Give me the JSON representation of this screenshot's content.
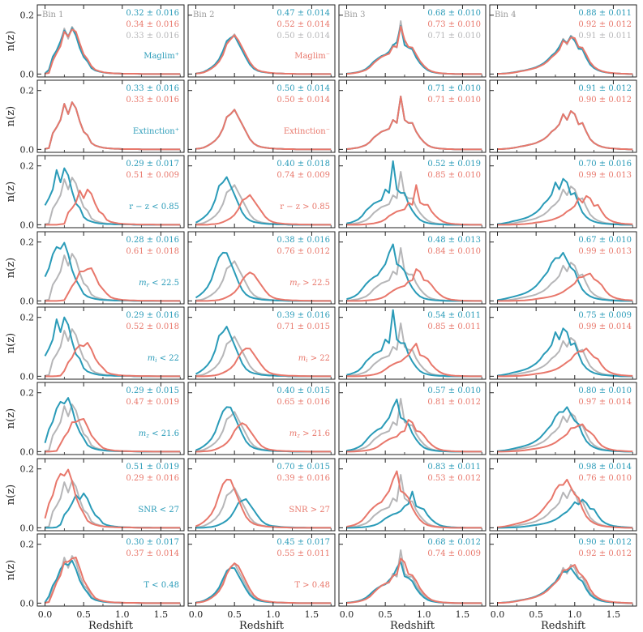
{
  "chart_data": {
    "type": "line",
    "title": "",
    "xlabel": "Redshift",
    "ylabel": "n(z)",
    "xlim": [
      -0.1,
      1.8
    ],
    "ylim": [
      -0.01,
      0.235
    ],
    "x_ticks": [
      0.0,
      0.5,
      1.0,
      1.5
    ],
    "x_tick_labels": [
      "0.0",
      "0.5",
      "1.0",
      "1.5"
    ],
    "y_ticks": [
      0.0,
      0.2
    ],
    "y_tick_labels": [
      "0.0",
      "0.2"
    ],
    "x_grid": [
      0.0,
      0.05,
      0.1,
      0.15,
      0.2,
      0.25,
      0.3,
      0.35,
      0.4,
      0.45,
      0.5,
      0.55,
      0.6,
      0.65,
      0.7,
      0.75,
      0.8,
      0.85,
      0.9,
      0.95,
      1.0,
      1.05,
      1.1,
      1.15,
      1.2,
      1.25,
      1.3,
      1.35,
      1.4,
      1.45,
      1.5,
      1.55,
      1.6,
      1.65,
      1.7,
      1.75
    ],
    "colors": {
      "blue": "#2a9bb8",
      "red": "#e8776b",
      "gray": "#b6b6b8"
    },
    "bin_labels": [
      "Bin 1",
      "Bin 2",
      "Bin 3",
      "Bin 4"
    ],
    "rows": [
      {
        "name": "Maglim",
        "labels": {
          "blue": "Maglim⁺",
          "red": "Maglim⁻"
        },
        "means": [
          [
            "0.32 ± 0.016",
            "0.34 ± 0.016",
            "0.33 ± 0.016"
          ],
          [
            "0.47 ± 0.014",
            "0.52 ± 0.014",
            "0.50 ± 0.014"
          ],
          [
            "0.68 ± 0.010",
            "0.73 ± 0.010",
            "0.71 ± 0.010"
          ],
          [
            "0.88 ± 0.011",
            "0.92 ± 0.012",
            "0.91 ± 0.011"
          ]
        ]
      },
      {
        "name": "Extinction",
        "labels": {
          "blue": "Extinction⁺",
          "red": "Extinction⁻"
        },
        "means": [
          [
            "0.33 ± 0.016",
            "0.33 ± 0.016"
          ],
          [
            "0.50 ± 0.014",
            "0.50 ± 0.014"
          ],
          [
            "0.71 ± 0.010",
            "0.71 ± 0.010"
          ],
          [
            "0.91 ± 0.012",
            "0.90 ± 0.012"
          ]
        ]
      },
      {
        "name": "r-z",
        "labels": {
          "blue": "r − z < 0.85",
          "red": "r − z > 0.85"
        },
        "means": [
          [
            "0.29 ± 0.017",
            "0.51 ± 0.009"
          ],
          [
            "0.40 ± 0.018",
            "0.74 ± 0.009"
          ],
          [
            "0.52 ± 0.019",
            "0.85 ± 0.010"
          ],
          [
            "0.70 ± 0.016",
            "0.99 ± 0.013"
          ]
        ]
      },
      {
        "name": "m_r",
        "labels": {
          "blue": "m_r < 22.5",
          "red": "m_r > 22.5"
        },
        "means": [
          [
            "0.28 ± 0.016",
            "0.61 ± 0.018"
          ],
          [
            "0.38 ± 0.016",
            "0.76 ± 0.012"
          ],
          [
            "0.48 ± 0.013",
            "0.84 ± 0.010"
          ],
          [
            "0.67 ± 0.010",
            "0.99 ± 0.013"
          ]
        ]
      },
      {
        "name": "m_i",
        "labels": {
          "blue": "m_i < 22",
          "red": "m_i > 22"
        },
        "means": [
          [
            "0.29 ± 0.016",
            "0.52 ± 0.018"
          ],
          [
            "0.39 ± 0.016",
            "0.71 ± 0.015"
          ],
          [
            "0.54 ± 0.011",
            "0.85 ± 0.011"
          ],
          [
            "0.75 ± 0.009",
            "0.99 ± 0.014"
          ]
        ]
      },
      {
        "name": "m_z",
        "labels": {
          "blue": "m_z < 21.6",
          "red": "m_z > 21.6"
        },
        "means": [
          [
            "0.29 ± 0.015",
            "0.47 ± 0.019"
          ],
          [
            "0.40 ± 0.015",
            "0.65 ± 0.016"
          ],
          [
            "0.57 ± 0.010",
            "0.81 ± 0.012"
          ],
          [
            "0.80 ± 0.010",
            "0.97 ± 0.014"
          ]
        ]
      },
      {
        "name": "SNR",
        "labels": {
          "blue": "SNR < 27",
          "red": "SNR > 27"
        },
        "means": [
          [
            "0.51 ± 0.019",
            "0.29 ± 0.016"
          ],
          [
            "0.70 ± 0.015",
            "0.39 ± 0.016"
          ],
          [
            "0.83 ± 0.011",
            "0.53 ± 0.012"
          ],
          [
            "0.98 ± 0.014",
            "0.76 ± 0.010"
          ]
        ]
      },
      {
        "name": "T",
        "labels": {
          "blue": "T < 0.48",
          "red": "T > 0.48"
        },
        "means": [
          [
            "0.30 ± 0.017",
            "0.37 ± 0.014"
          ],
          [
            "0.45 ± 0.017",
            "0.55 ± 0.011"
          ],
          [
            "0.68 ± 0.012",
            "0.74 ± 0.009"
          ],
          [
            "0.90 ± 0.012",
            "0.92 ± 0.012"
          ]
        ]
      }
    ],
    "base_curves": [
      [
        0.002,
        0.004,
        0.055,
        0.075,
        0.1,
        0.155,
        0.12,
        0.16,
        0.14,
        0.095,
        0.06,
        0.048,
        0.022,
        0.013,
        0.009,
        0.006,
        0.004,
        0.003,
        0.002,
        0.002,
        0.001,
        0.001,
        0.001,
        0.001,
        0.001,
        0,
        0,
        0,
        0,
        0,
        0,
        0,
        0,
        0,
        0,
        0
      ],
      [
        0.002,
        0.003,
        0.006,
        0.012,
        0.02,
        0.03,
        0.045,
        0.07,
        0.11,
        0.12,
        0.135,
        0.11,
        0.085,
        0.06,
        0.035,
        0.02,
        0.012,
        0.008,
        0.006,
        0.004,
        0.003,
        0.002,
        0.002,
        0.001,
        0.001,
        0.001,
        0,
        0,
        0,
        0,
        0,
        0,
        0,
        0,
        0,
        0
      ],
      [
        0.001,
        0.002,
        0.004,
        0.006,
        0.01,
        0.015,
        0.025,
        0.04,
        0.05,
        0.06,
        0.065,
        0.07,
        0.1,
        0.09,
        0.18,
        0.1,
        0.09,
        0.09,
        0.06,
        0.04,
        0.025,
        0.014,
        0.008,
        0.005,
        0.003,
        0.002,
        0.001,
        0.001,
        0,
        0,
        0,
        0,
        0,
        0,
        0,
        0
      ],
      [
        0.001,
        0.001,
        0.002,
        0.003,
        0.005,
        0.007,
        0.01,
        0.012,
        0.015,
        0.018,
        0.022,
        0.028,
        0.035,
        0.045,
        0.06,
        0.07,
        0.085,
        0.12,
        0.1,
        0.13,
        0.12,
        0.085,
        0.09,
        0.06,
        0.035,
        0.022,
        0.014,
        0.009,
        0.006,
        0.004,
        0.003,
        0.002,
        0.001,
        0.001,
        0,
        0
      ]
    ]
  }
}
